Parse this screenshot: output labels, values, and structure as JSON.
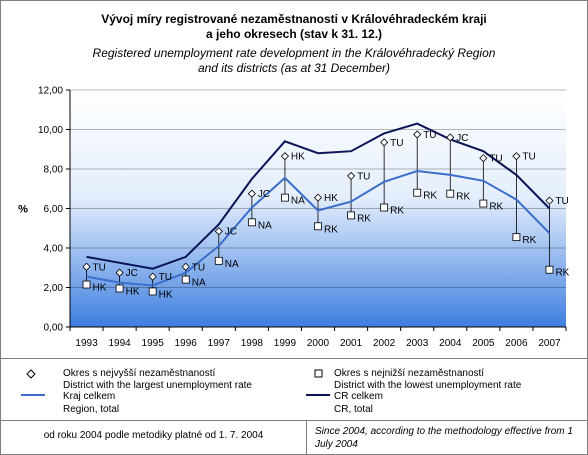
{
  "title_cz_line1": "Vývoj míry registrované nezaměstnanosti v Královéhradeckém kraji",
  "title_cz_line2": "a jeho okresech (stav k 31. 12.)",
  "title_en_line1": "Registered unemployment rate development in the Královéhradecký Region",
  "title_en_line2": "and its districts (as at 31 December)",
  "chart_data": {
    "type": "line",
    "categories": [
      "1993",
      "1994",
      "1995",
      "1996",
      "1997",
      "1998",
      "1999",
      "2000",
      "2001",
      "2002",
      "2003",
      "2004",
      "2005",
      "2006",
      "2007"
    ],
    "ylabel": "%",
    "ylim": [
      0,
      12
    ],
    "yticks": [
      "0,00",
      "2,00",
      "4,00",
      "6,00",
      "8,00",
      "10,00",
      "12,00"
    ],
    "grid": true,
    "series": [
      {
        "name": "Okres s nejvyšší nezaměstnaností",
        "name_en": "District with the largest unemployment rate",
        "values": [
          3.05,
          2.75,
          2.55,
          3.05,
          4.85,
          6.75,
          8.65,
          6.55,
          7.65,
          9.35,
          9.75,
          9.6,
          8.55,
          8.65,
          6.4
        ],
        "labels": [
          "TU",
          "JC",
          "TU",
          "TU",
          "JC",
          "JC",
          "HK",
          "HK",
          "TU",
          "TU",
          "TU",
          "JC",
          "TU",
          "TU",
          "TU"
        ]
      },
      {
        "name": "Okres s nejnižší nezaměstnaností",
        "name_en": "District with the lowest unemployment rate",
        "values": [
          2.15,
          1.95,
          1.8,
          2.4,
          3.35,
          5.3,
          6.55,
          5.1,
          5.65,
          6.05,
          6.8,
          6.75,
          6.25,
          4.55,
          2.9
        ],
        "labels": [
          "HK",
          "HK",
          "HK",
          "NA",
          "NA",
          "NA",
          "NA",
          "RK",
          "RK",
          "RK",
          "RK",
          "RK",
          "RK",
          "RK",
          "RK"
        ]
      },
      {
        "name": "Kraj celkem",
        "name_en": "Region, total",
        "values": [
          2.55,
          2.25,
          2.1,
          2.75,
          4.1,
          6.05,
          7.55,
          5.9,
          6.35,
          7.35,
          7.9,
          7.7,
          7.4,
          6.45,
          4.75
        ]
      },
      {
        "name": "CR celkem",
        "name_en": "CR, total",
        "values": [
          3.55,
          3.25,
          2.95,
          3.55,
          5.2,
          7.5,
          9.4,
          8.8,
          8.9,
          9.8,
          10.3,
          9.5,
          8.9,
          7.7,
          6.0
        ]
      }
    ]
  },
  "colors": {
    "region_line": "#3a6ec8",
    "cr_line": "#0b1456",
    "plot_top": "#ffffff",
    "plot_bottom": "#3f7fe0"
  },
  "legend": {
    "max_cz": "Okres s nejvyšší nezaměstnaností",
    "max_en": "District with the largest unemployment rate",
    "min_cz": "Okres s nejnižší nezaměstnaností",
    "min_en": "District with the lowest unemployment rate",
    "region_cz": "Kraj celkem",
    "region_en": "Region, total",
    "cr_cz": "CR celkem",
    "cr_en": "CR, total"
  },
  "footnote": {
    "cz": "od roku 2004 podle metodiky platné od 1. 7. 2004",
    "en": "Since 2004, according to the methodology effective from 1 July 2004"
  }
}
